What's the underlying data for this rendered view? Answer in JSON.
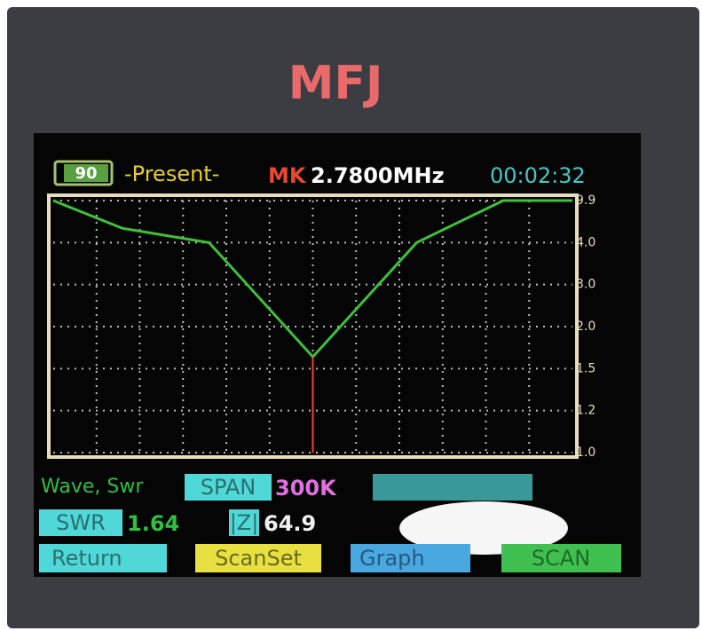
{
  "logo": "MFJ",
  "header": {
    "battery": "90",
    "mode": "-Present-",
    "marker_label": "MK",
    "frequency": "2.7800MHz",
    "time": "00:02:32"
  },
  "chart_data": {
    "type": "line",
    "x": [
      2.63,
      2.67,
      2.72,
      2.78,
      2.84,
      2.89,
      2.93
    ],
    "xlim": [
      2.63,
      2.93
    ],
    "series": [
      {
        "name": "SWR",
        "color": "#3fbf3a",
        "values": [
          9.9,
          6.0,
          4.0,
          1.64,
          4.0,
          9.9,
          9.9
        ]
      }
    ],
    "ylim": [
      1.0,
      9.9
    ],
    "yticks": [
      {
        "value": 1.0,
        "label": "1.0"
      },
      1.2,
      1.5,
      {
        "value": 2.0,
        "label": "2.0"
      },
      {
        "value": 3.0,
        "label": "3.0"
      },
      {
        "value": 4.0,
        "label": "4.0"
      },
      9.9
    ],
    "grid": true
  },
  "footer": {
    "wave": "Wave, Swr",
    "span_label": "SPAN",
    "span_value": "300K",
    "swr_label": "SWR",
    "swr_value": "1.64",
    "z_label": "|Z|",
    "z_value": "64.9",
    "return": "Return",
    "scanset": "ScanSet",
    "graph": "Graph",
    "scan": "SCAN"
  }
}
